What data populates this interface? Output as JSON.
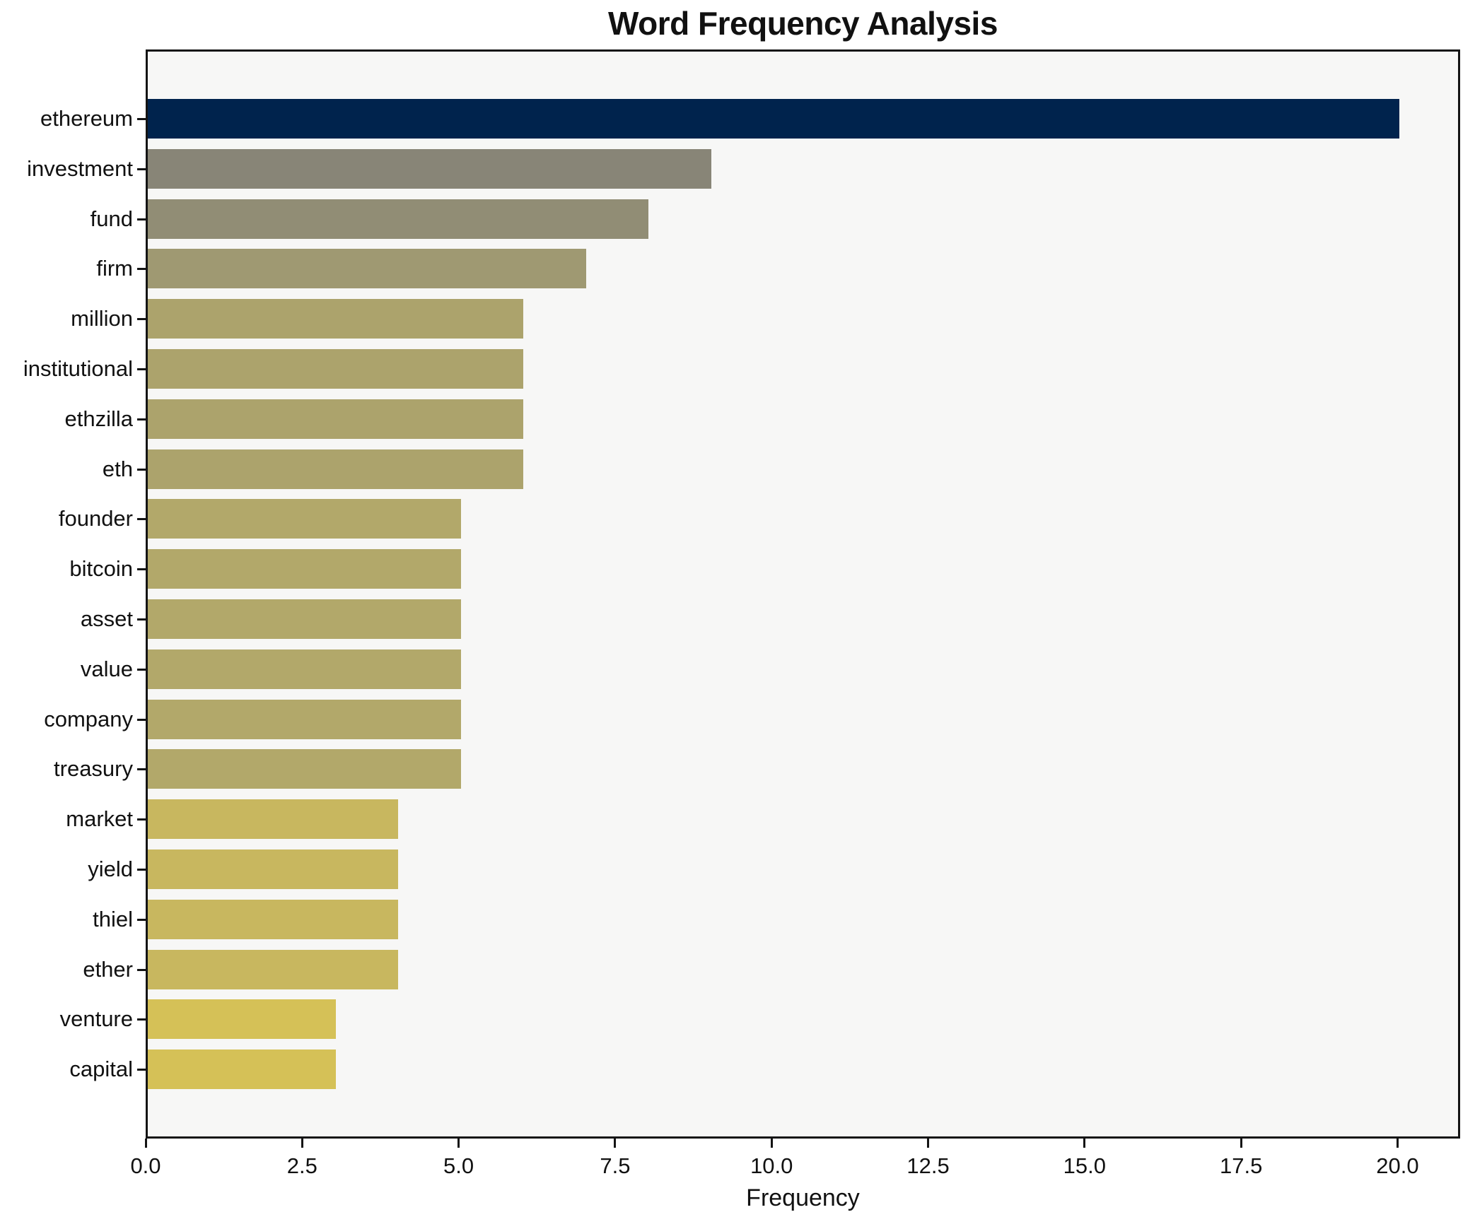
{
  "title": "Word Frequency Analysis",
  "chart_data": {
    "type": "bar",
    "orientation": "horizontal",
    "title": "Word Frequency Analysis",
    "xlabel": "Frequency",
    "ylabel": "",
    "categories": [
      "ethereum",
      "investment",
      "fund",
      "firm",
      "million",
      "institutional",
      "ethzilla",
      "eth",
      "founder",
      "bitcoin",
      "asset",
      "value",
      "company",
      "treasury",
      "market",
      "yield",
      "thiel",
      "ether",
      "venture",
      "capital"
    ],
    "values": [
      20,
      9,
      8,
      7,
      6,
      6,
      6,
      6,
      5,
      5,
      5,
      5,
      5,
      5,
      4,
      4,
      4,
      4,
      3,
      3
    ],
    "bar_colors": [
      "#00234d",
      "#888577",
      "#918d75",
      "#9f9972",
      "#aca36c",
      "#aca36c",
      "#aca36c",
      "#aca36c",
      "#b2a86a",
      "#b2a86a",
      "#b2a86a",
      "#b2a86a",
      "#b2a86a",
      "#b2a86a",
      "#c8b75f",
      "#c8b75f",
      "#c8b75f",
      "#c8b75f",
      "#d5c157",
      "#d5c157"
    ],
    "xlim": [
      0,
      21
    ],
    "xticks": [
      0.0,
      2.5,
      5.0,
      7.5,
      10.0,
      12.5,
      15.0,
      17.5,
      20.0
    ],
    "xtick_labels": [
      "0.0",
      "2.5",
      "5.0",
      "7.5",
      "10.0",
      "12.5",
      "15.0",
      "17.5",
      "20.0"
    ],
    "grid": false,
    "legend": false,
    "plot_background": "#f7f7f6",
    "figure_background": "#ffffff",
    "spine_color": "#141414",
    "colormap_hint": "cividis reversed (dark navy = highest frequency, yellow = lowest)"
  }
}
